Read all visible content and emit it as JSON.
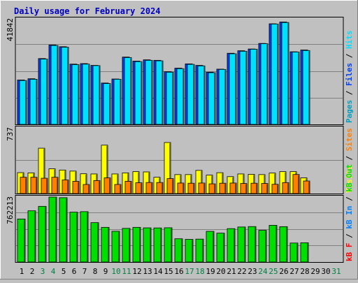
{
  "chart_data": {
    "type": "bar",
    "title": "Daily usage for February 2024",
    "categories": [
      "1",
      "2",
      "3",
      "4",
      "5",
      "6",
      "7",
      "8",
      "9",
      "10",
      "11",
      "12",
      "13",
      "14",
      "15",
      "16",
      "17",
      "18",
      "19",
      "20",
      "21",
      "22",
      "23",
      "24",
      "25",
      "26",
      "27",
      "28",
      "29",
      "30",
      "31"
    ],
    "weekend_days": [
      "3",
      "4",
      "10",
      "11",
      "17",
      "18",
      "24",
      "25",
      "31"
    ],
    "panels": [
      {
        "id": "hits",
        "max_label": "41842",
        "ylim": [
          0,
          41842
        ],
        "legend": [
          "Pages",
          "Files",
          "Hits"
        ],
        "series": [
          {
            "name": "Pages",
            "color": "#00a0c0",
            "values": [
              null,
              null,
              null,
              null,
              null,
              null,
              null,
              null,
              null,
              null,
              null,
              null,
              null,
              null,
              null,
              null,
              null,
              null,
              null,
              null,
              null,
              null,
              null,
              null,
              null,
              null,
              null,
              null,
              null,
              null,
              null
            ]
          },
          {
            "name": "Files",
            "color": "#0040ff",
            "values": [
              17600,
              18100,
              26100,
              31500,
              30800,
              23900,
              24100,
              23400,
              16400,
              18000,
              26700,
              25100,
              25600,
              25400,
              20900,
              22300,
              24000,
              23400,
              20700,
              21900,
              28200,
              29200,
              29900,
              32100,
              39900,
              40600,
              28800,
              29500,
              null,
              null,
              null
            ]
          },
          {
            "name": "Hits",
            "color": "#00e0ff",
            "values": [
              17400,
              17900,
              25900,
              31300,
              30600,
              23700,
              23900,
              23300,
              16200,
              17900,
              26500,
              24900,
              25400,
              25200,
              20700,
              22100,
              23800,
              23200,
              20500,
              21800,
              28000,
              29000,
              29800,
              32000,
              39800,
              40400,
              28700,
              29300,
              null,
              null,
              null
            ]
          }
        ]
      },
      {
        "id": "sites",
        "max_label": "737",
        "ylim": [
          0,
          737
        ],
        "legend": [
          "Visits",
          "Sites"
        ],
        "series": [
          {
            "name": "Visits",
            "color": "#ffff00",
            "values": [
              235,
              232,
              509,
              278,
              264,
              252,
              222,
              220,
              543,
              220,
              232,
              246,
              243,
              183,
              573,
              213,
              213,
              260,
              207,
              234,
              190,
              220,
              216,
              213,
              230,
              246,
              246,
              176,
              null,
              null,
              null
            ]
          },
          {
            "name": "Sites",
            "color": "#ff8000",
            "values": [
              183,
              183,
              172,
              183,
              153,
              137,
              102,
              146,
              176,
              102,
              138,
              121,
              124,
              124,
              168,
              118,
              116,
              118,
              109,
              116,
              118,
              113,
              116,
              113,
              104,
              123,
              214,
              141,
              null,
              null,
              null
            ]
          }
        ]
      },
      {
        "id": "kbytes",
        "max_label": "762213",
        "ylim": [
          0,
          762213
        ],
        "legend": [
          "kB F",
          "kB In",
          "kB Out"
        ],
        "series": [
          {
            "name": "kB F",
            "color": "#ff0000",
            "values": [
              null,
              null,
              null,
              null,
              null,
              null,
              null,
              null,
              null,
              null,
              null,
              null,
              null,
              null,
              null,
              null,
              null,
              null,
              null,
              null,
              null,
              null,
              null,
              null,
              null,
              null,
              null,
              null,
              null,
              null,
              null
            ]
          },
          {
            "name": "kB In",
            "color": "#0080ff",
            "values": [
              null,
              null,
              null,
              null,
              null,
              null,
              null,
              null,
              null,
              null,
              null,
              null,
              null,
              null,
              null,
              null,
              null,
              null,
              null,
              null,
              null,
              null,
              null,
              null,
              null,
              null,
              null,
              null,
              null,
              null,
              null
            ]
          },
          {
            "name": "kB Out",
            "color": "#00e000",
            "values": [
              505000,
              601000,
              653000,
              762213,
              755000,
              585000,
              591000,
              462000,
              407000,
              361000,
              395000,
              407000,
              401000,
              400000,
              402000,
              273000,
              266000,
              269000,
              360000,
              339000,
              392000,
              411000,
              416000,
              372000,
              431000,
              415000,
              223000,
              226000,
              null,
              null,
              null
            ]
          }
        ]
      }
    ]
  }
}
